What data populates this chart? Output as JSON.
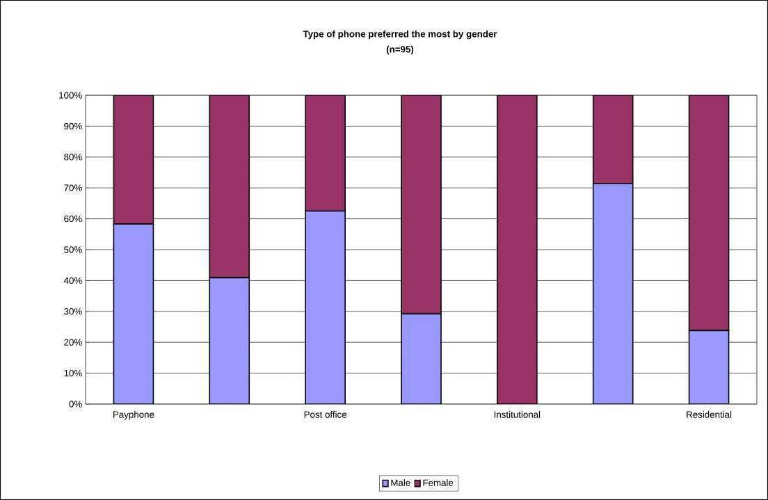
{
  "chart_data": {
    "type": "bar",
    "stacked": true,
    "title": "Type of phone preferred the most by gender",
    "subtitle": "(n=95)",
    "categories": [
      "Payphone",
      null,
      "Post office",
      null,
      "Institutional",
      null,
      "Residential"
    ],
    "series": [
      {
        "name": "Male",
        "color": "#9999ff",
        "values": [
          58.3,
          40.9,
          62.5,
          29.2,
          0,
          71.4,
          23.8
        ]
      },
      {
        "name": "Female",
        "color": "#993366",
        "values": [
          41.7,
          59.1,
          37.5,
          70.8,
          100,
          28.6,
          76.2
        ]
      }
    ],
    "ylim": [
      0,
      100
    ],
    "yticks": [
      {
        "value": 0,
        "label": "0%"
      },
      {
        "value": 10,
        "label": "10%"
      },
      {
        "value": 20,
        "label": "20%"
      },
      {
        "value": 30,
        "label": "30%"
      },
      {
        "value": 40,
        "label": "40%"
      },
      {
        "value": 50,
        "label": "50%"
      },
      {
        "value": 60,
        "label": "60%"
      },
      {
        "value": 70,
        "label": "70%"
      },
      {
        "value": 80,
        "label": "80%"
      },
      {
        "value": 90,
        "label": "90%"
      },
      {
        "value": 100,
        "label": "100%"
      }
    ],
    "grid": "y",
    "legend": "bottom"
  }
}
